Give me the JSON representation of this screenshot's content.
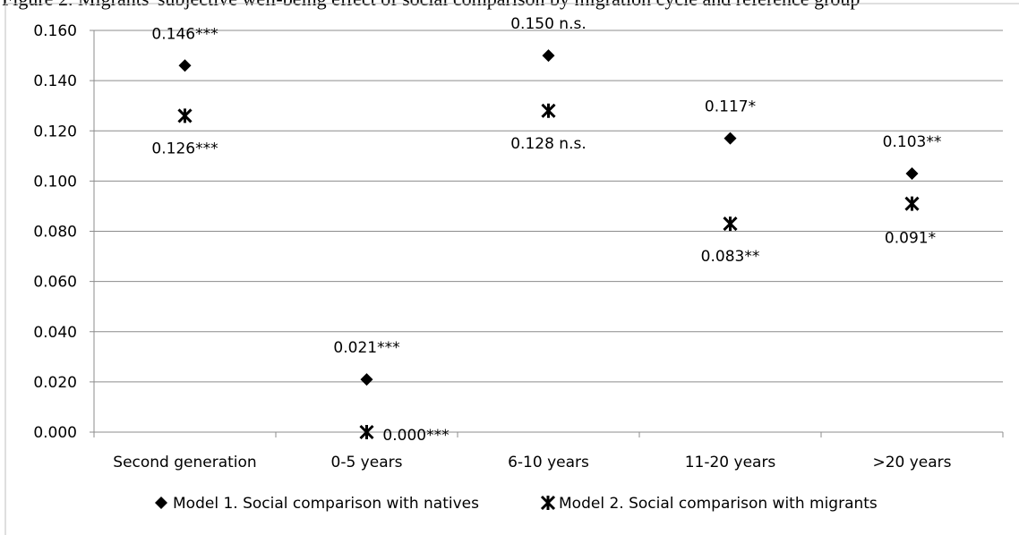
{
  "caption": "Figure 2. Migrants' subjective well-being effect of social comparison by migration cycle and reference group",
  "chart_data": {
    "type": "scatter",
    "title": "",
    "xlabel": "",
    "ylabel": "",
    "categories": [
      "Second generation",
      "0-5 years",
      "6-10 years",
      "11-20 years",
      ">20 years"
    ],
    "ylim": [
      0,
      0.16
    ],
    "yticks": [
      "0.000",
      "0.020",
      "0.040",
      "0.060",
      "0.080",
      "0.100",
      "0.120",
      "0.140",
      "0.160"
    ],
    "grid": true,
    "legend_position": "bottom",
    "series": [
      {
        "name": "Model 1. Social comparison with natives",
        "marker": "diamond",
        "color": "#000000",
        "values": [
          0.146,
          0.021,
          0.15,
          0.117,
          0.103
        ],
        "labels": [
          "0.146***",
          "0.021***",
          "0.150 n.s.",
          "0.117*",
          "0.103**"
        ]
      },
      {
        "name": "Model 2. Social comparison with migrants",
        "marker": "star",
        "color": "#000000",
        "values": [
          0.126,
          0.0,
          0.128,
          0.083,
          0.091
        ],
        "labels": [
          "0.126***",
          "0.000***",
          "0.128 n.s.",
          "0.083**",
          "0.091*"
        ]
      }
    ]
  }
}
